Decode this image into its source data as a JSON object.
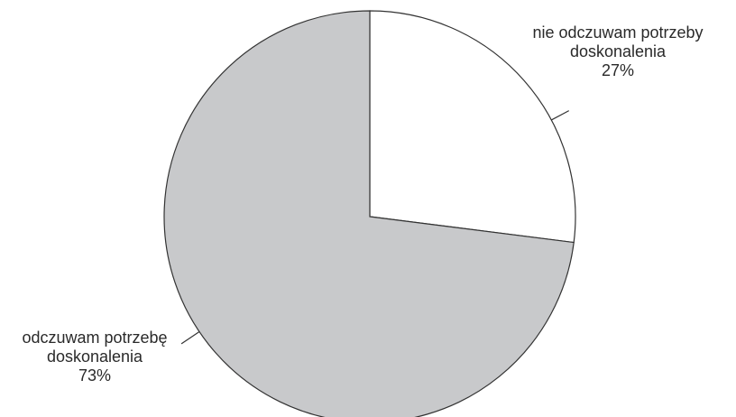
{
  "chart_data": {
    "type": "pie",
    "title": "",
    "categories": [
      "nie odczuwam potrzeby doskonalenia",
      "odczuwam potrzebę doskonalenia"
    ],
    "values": [
      27,
      73
    ],
    "unit": "%",
    "slice_labels": [
      {
        "line1": "nie odczuwam potrzeby",
        "line2": "doskonalenia",
        "pct": "27%"
      },
      {
        "line1": "odczuwam potrzebę",
        "line2": "doskonalenia",
        "pct": "73%"
      }
    ],
    "colors": [
      "#ffffff",
      "#c8c9cb"
    ],
    "stroke_color": "#333333",
    "start_angle": "12 o'clock",
    "direction": "clockwise",
    "legend": "none"
  }
}
